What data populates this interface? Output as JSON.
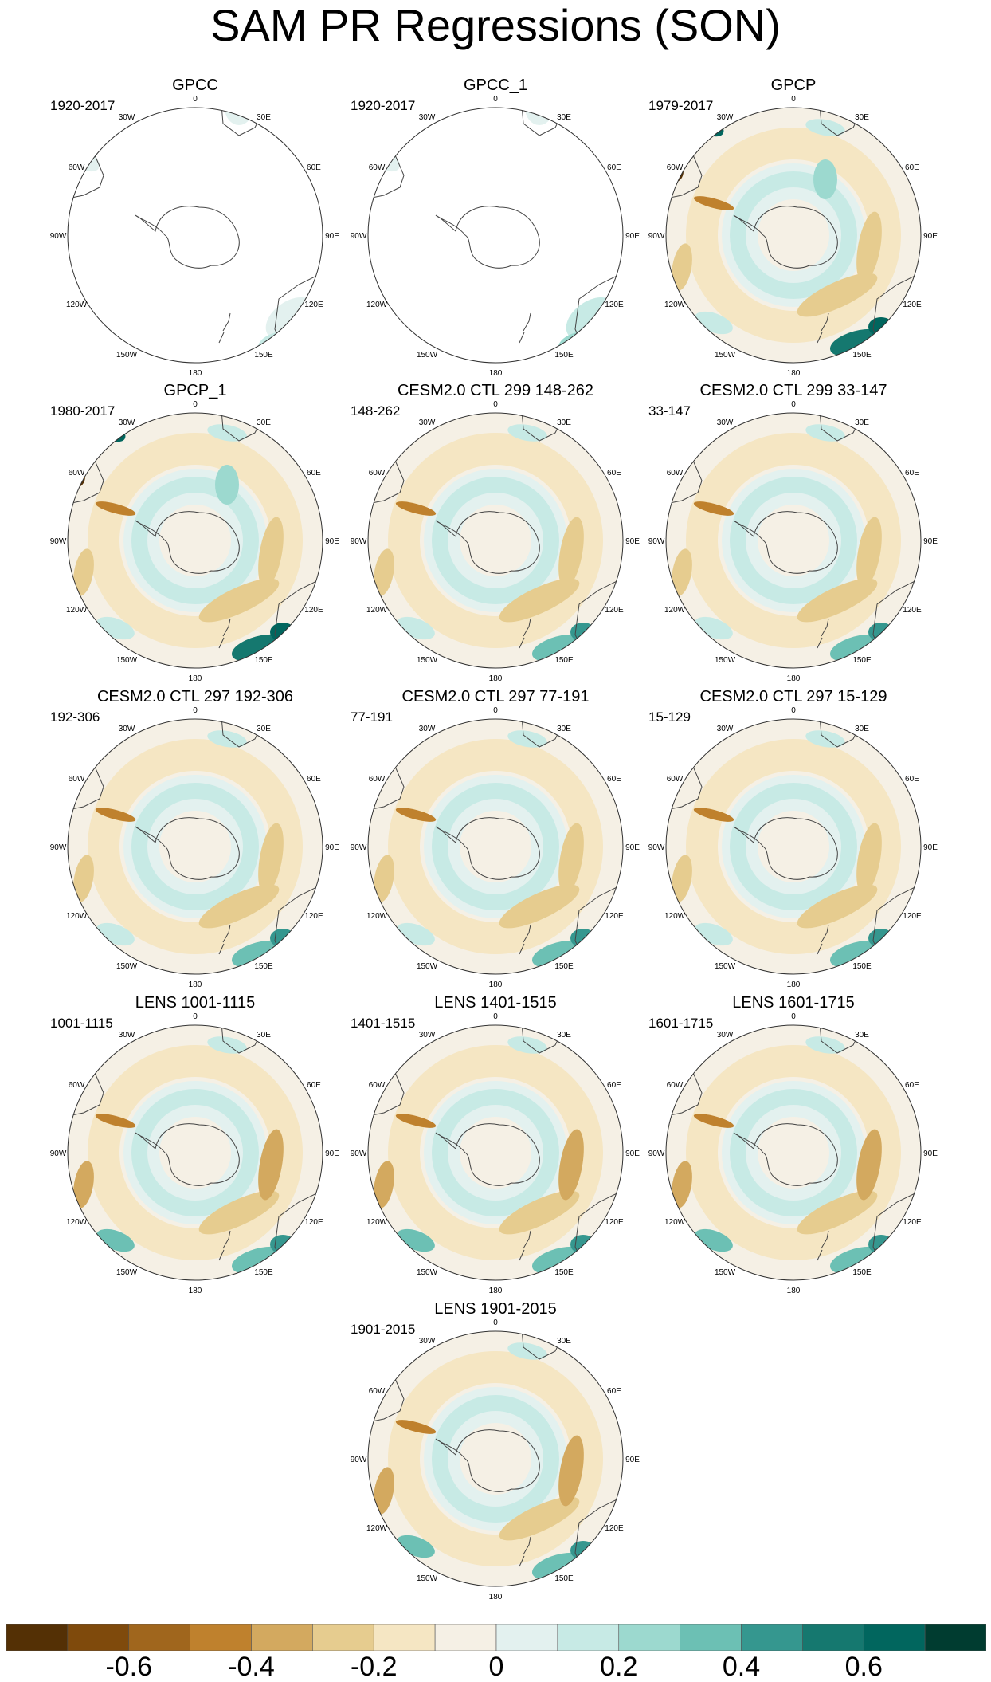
{
  "title": "SAM PR Regressions (SON)",
  "longitude_labels": [
    "0",
    "30E",
    "60E",
    "90E",
    "120E",
    "150E",
    "180",
    "150W",
    "120W",
    "90W",
    "60W",
    "30W"
  ],
  "panels": [
    {
      "title": "GPCC",
      "period": "1920-2017",
      "style": "gpcc"
    },
    {
      "title": "GPCC_1",
      "period": "1920-2017",
      "style": "gpcc1"
    },
    {
      "title": "GPCP",
      "period": "1979-2017",
      "style": "gpcp"
    },
    {
      "title": "GPCP_1",
      "period": "1980-2017",
      "style": "gpcp"
    },
    {
      "title": "CESM2.0 CTL 299 148-262",
      "period": "148-262",
      "style": "model"
    },
    {
      "title": "CESM2.0 CTL 299 33-147",
      "period": "33-147",
      "style": "model"
    },
    {
      "title": "CESM2.0 CTL 297 192-306",
      "period": "192-306",
      "style": "model"
    },
    {
      "title": "CESM2.0 CTL 297 77-191",
      "period": "77-191",
      "style": "model"
    },
    {
      "title": "CESM2.0 CTL 297 15-129",
      "period": "15-129",
      "style": "model"
    },
    {
      "title": "LENS 1001-1115",
      "period": "1001-1115",
      "style": "lens"
    },
    {
      "title": "LENS 1401-1515",
      "period": "1401-1515",
      "style": "lens"
    },
    {
      "title": "LENS 1601-1715",
      "period": "1601-1715",
      "style": "lens"
    },
    {
      "title": "LENS 1901-2015",
      "period": "1901-2015",
      "style": "lens"
    }
  ],
  "colorbar": {
    "colors": [
      "#543005",
      "#7f4a0c",
      "#a0661d",
      "#bf812d",
      "#d3a95f",
      "#e6cc8f",
      "#f5e6c3",
      "#f5f0e5",
      "#e3f1ef",
      "#c7eae5",
      "#9cd9cf",
      "#6cc0b4",
      "#35978f",
      "#15786f",
      "#01665e",
      "#003c30"
    ],
    "tick_labels": [
      "-0.6",
      "-0.4",
      "-0.2",
      "0",
      "0.2",
      "0.4",
      "0.6"
    ]
  }
}
